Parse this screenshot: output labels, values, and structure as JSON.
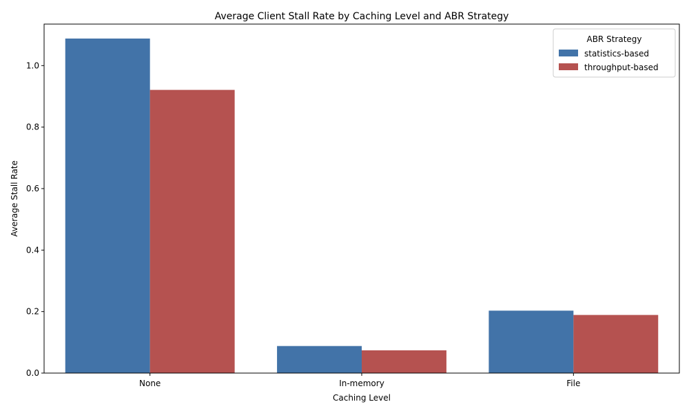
{
  "chart_data": {
    "type": "bar",
    "title": "Average Client Stall Rate by Caching Level and ABR Strategy",
    "xlabel": "Caching Level",
    "ylabel": "Average Stall Rate",
    "categories": [
      "None",
      "In-memory",
      "File"
    ],
    "series": [
      {
        "name": "statistics-based",
        "color": "#4273a8",
        "values": [
          1.088,
          0.088,
          0.203
        ]
      },
      {
        "name": "throughput-based",
        "color": "#b55250",
        "values": [
          0.921,
          0.074,
          0.189
        ]
      }
    ],
    "ylim": [
      0,
      1.135
    ],
    "yticks": [
      0.0,
      0.2,
      0.4,
      0.6,
      0.8,
      1.0
    ],
    "ytick_labels": [
      "0.0",
      "0.2",
      "0.4",
      "0.6",
      "0.8",
      "1.0"
    ],
    "legend": {
      "title": "ABR Strategy",
      "position": "top-right"
    },
    "grid": false
  }
}
